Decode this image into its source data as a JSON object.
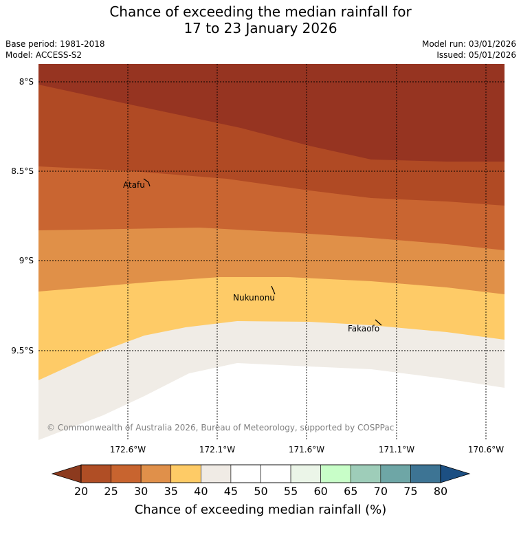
{
  "title": {
    "line1": "Chance of exceeding the median rainfall for",
    "line2": "17 to 23 January 2026"
  },
  "meta": {
    "base_period": "Base period: 1981-2018",
    "model": "Model: ACCESS-S2",
    "model_run": "Model run: 03/01/2026",
    "issued": "Issued: 05/01/2026"
  },
  "map": {
    "latitude_labels": [
      "8°S",
      "8.5°S",
      "9°S",
      "9.5°S"
    ],
    "longitude_labels": [
      "172.6°W",
      "172.1°W",
      "171.6°W",
      "171.1°W",
      "170.6°W"
    ],
    "places": [
      {
        "name": "Atafu"
      },
      {
        "name": "Nukunonu"
      },
      {
        "name": "Fakaofo"
      }
    ],
    "copyright": "© Commonwealth of Australia 2026, Bureau of Meteorology, supported by COSPPac"
  },
  "colorbar": {
    "title": "Chance of exceeding median rainfall (%)",
    "ticks": [
      "20",
      "25",
      "30",
      "35",
      "40",
      "45",
      "50",
      "55",
      "60",
      "65",
      "70",
      "75",
      "80"
    ],
    "under_color": "#8c3a1e",
    "over_color": "#1c4f82",
    "colors": [
      "#b04e25",
      "#c8642f",
      "#e0904a",
      "#fecb66",
      "#f0ebe5",
      "#ffffff",
      "#ffffff",
      "#ebf5e8",
      "#c8fec8",
      "#9ecdb9",
      "#6ea6a6",
      "#3d7494"
    ]
  },
  "colors": {
    "band_lt20": "#963421",
    "band_20_25": "#b04a24",
    "band_25_30": "#c96531",
    "band_30_35": "#e09048",
    "band_35_40": "#fecb67",
    "band_40_45": "#f0ece6",
    "band_45_55": "#ffffff"
  }
}
